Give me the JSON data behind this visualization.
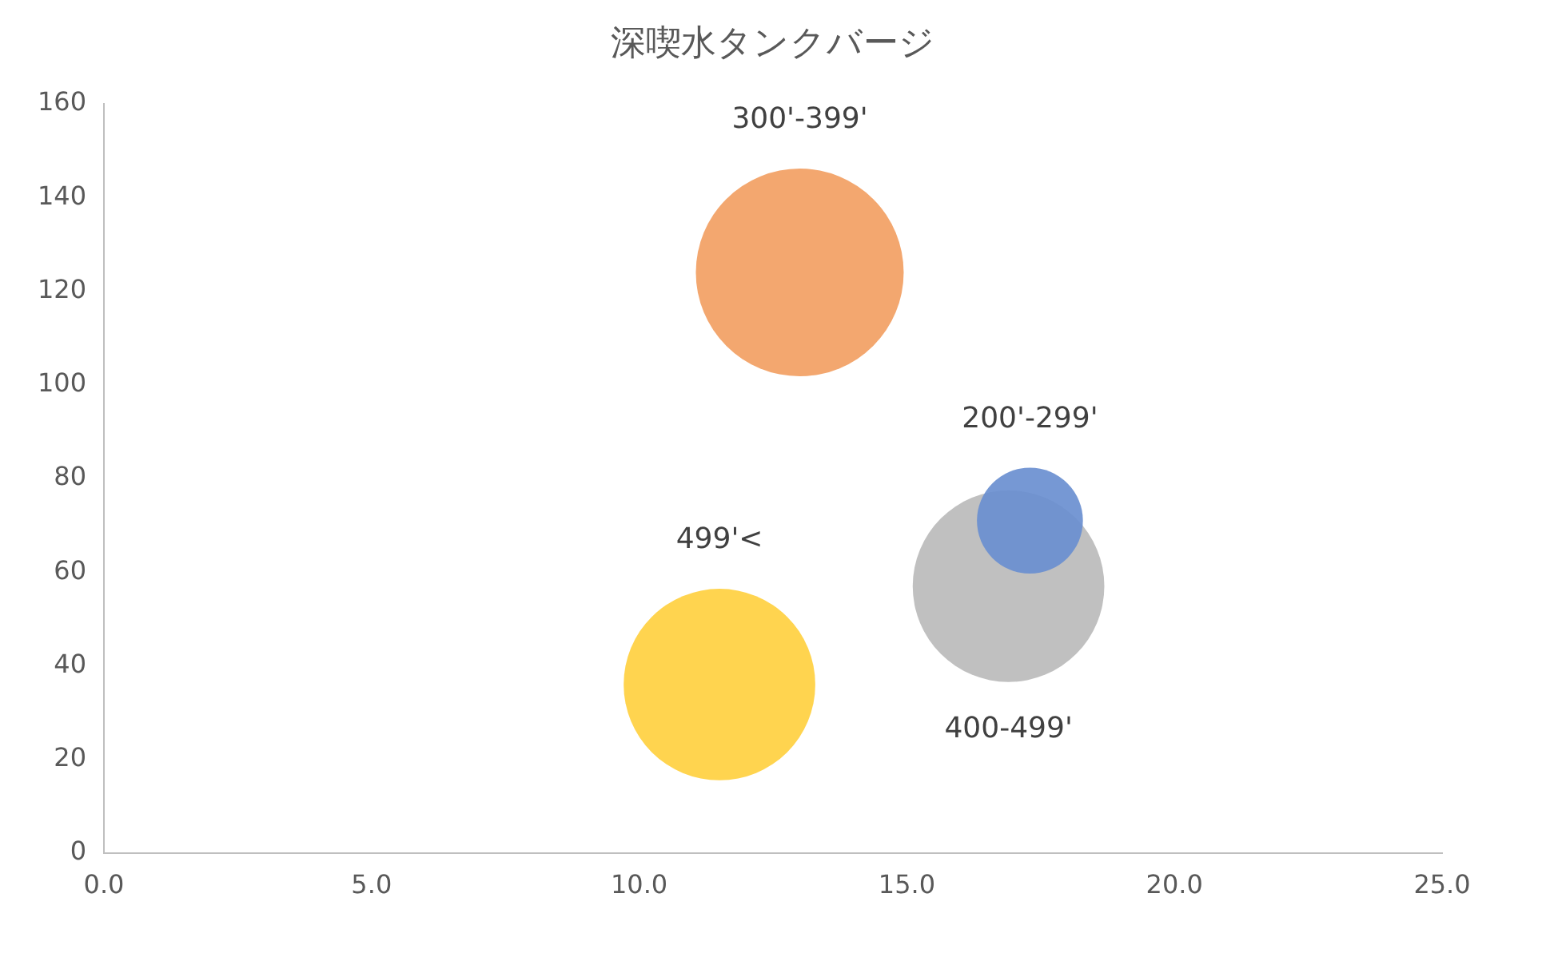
{
  "chart_data": {
    "type": "bubble",
    "title": "深喫水タンクバージ",
    "xlim": [
      0,
      25
    ],
    "xticks": [
      {
        "value": 0,
        "label": "0.0"
      },
      {
        "value": 5,
        "label": "5.0"
      },
      {
        "value": 10,
        "label": "10.0"
      },
      {
        "value": 15,
        "label": "15.0"
      },
      {
        "value": 20,
        "label": "20.0"
      },
      {
        "value": 25,
        "label": "25.0"
      }
    ],
    "ylim": [
      0,
      160
    ],
    "yticks": [
      0,
      20,
      40,
      60,
      80,
      100,
      120,
      140,
      160
    ],
    "grid": false,
    "legend": false,
    "series": [
      {
        "name": "200'-299'",
        "color": "#6a8fd0",
        "x": [
          17.3
        ],
        "values": [
          71
        ],
        "sizes": [
          0.26
        ]
      },
      {
        "name": "300'-399'",
        "color": "#f2a063",
        "x": [
          13.0
        ],
        "values": [
          124
        ],
        "sizes": [
          1
        ]
      },
      {
        "name": "400-499'",
        "color": "#bbbbbb",
        "x": [
          16.9
        ],
        "values": [
          57
        ],
        "sizes": [
          0.85
        ]
      },
      {
        "name": "499'<",
        "color": "#ffd040",
        "x": [
          11.5
        ],
        "values": [
          36
        ],
        "sizes": [
          0.85
        ]
      }
    ]
  }
}
